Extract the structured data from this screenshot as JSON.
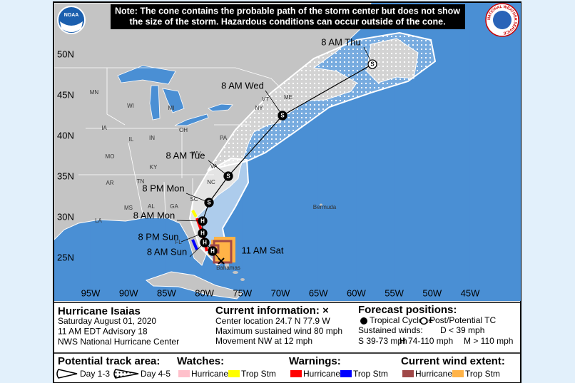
{
  "note": [
    "Note: The cone contains the probable path of the storm center but does not show",
    "the size of the storm. Hazardous conditions can occur outside of the cone."
  ],
  "logos": {
    "left": "NOAA",
    "right": "NATIONAL WEATHER SERVICE"
  },
  "lat_labels": [
    "50N",
    "45N",
    "40N",
    "35N",
    "30N",
    "25N"
  ],
  "lon_labels": [
    "95W",
    "90W",
    "85W",
    "80W",
    "75W",
    "70W",
    "65W",
    "60W",
    "55W",
    "50W",
    "45W"
  ],
  "region_labels": [
    "MN",
    "WI",
    "MI",
    "IA",
    "IL",
    "IN",
    "OH",
    "PA",
    "NY",
    "ME",
    "VT",
    "MO",
    "KY",
    "WV",
    "VA",
    "NC",
    "TN",
    "AR",
    "SC",
    "MS",
    "AL",
    "GA",
    "LA",
    "FL",
    "Bermuda",
    "Bahamas"
  ],
  "forecast_points": [
    {
      "label": "8 AM Thu",
      "symbol": "S",
      "post_tropical": true
    },
    {
      "label": "8 AM Wed",
      "symbol": "S",
      "post_tropical": false
    },
    {
      "label": "8 AM Tue",
      "symbol": "S",
      "post_tropical": false
    },
    {
      "label": "8 PM Mon",
      "symbol": "S",
      "post_tropical": false
    },
    {
      "label": "8 AM Mon",
      "symbol": "H",
      "post_tropical": false
    },
    {
      "label": "8 PM Sun",
      "symbol": "H",
      "post_tropical": false
    },
    {
      "label": "8 AM Sun",
      "symbol": "H",
      "post_tropical": false
    },
    {
      "symbol": "H",
      "post_tropical": false
    }
  ],
  "current_label": "11 AM Sat",
  "info": {
    "storm": "Hurricane Isaias",
    "lines": [
      "Saturday August 01, 2020",
      "11 AM EDT Advisory 18",
      "NWS National Hurricane Center"
    ],
    "current_title": "Current information: ×",
    "current_lines": [
      "Center location 24.7 N 77.9 W",
      "Maximum sustained wind 80 mph",
      "Movement NW at 12 mph"
    ],
    "forecast_title": "Forecast positions:",
    "tropical": "Tropical Cyclone",
    "post": "Post/Potential TC",
    "winds_title": "Sustained winds:",
    "winds": [
      "D < 39 mph",
      "S 39-73 mph",
      "H 74-110 mph",
      "M > 110 mph"
    ]
  },
  "legend": {
    "track_title": "Potential track area:",
    "day13": "Day 1-3",
    "day45": "Day 4-5",
    "groups": [
      {
        "title": "Watches:",
        "items": [
          {
            "name": "Hurricane",
            "color": "#ffc0cb"
          },
          {
            "name": "Trop Stm",
            "color": "#ffff00"
          }
        ]
      },
      {
        "title": "Warnings:",
        "items": [
          {
            "name": "Hurricane",
            "color": "#ff0000"
          },
          {
            "name": "Trop Stm",
            "color": "#0000ff"
          }
        ]
      },
      {
        "title": "Current wind extent:",
        "items": [
          {
            "name": "Hurricane",
            "color": "#a04848"
          },
          {
            "name": "Trop Stm",
            "color": "#ffb347"
          }
        ]
      }
    ]
  }
}
